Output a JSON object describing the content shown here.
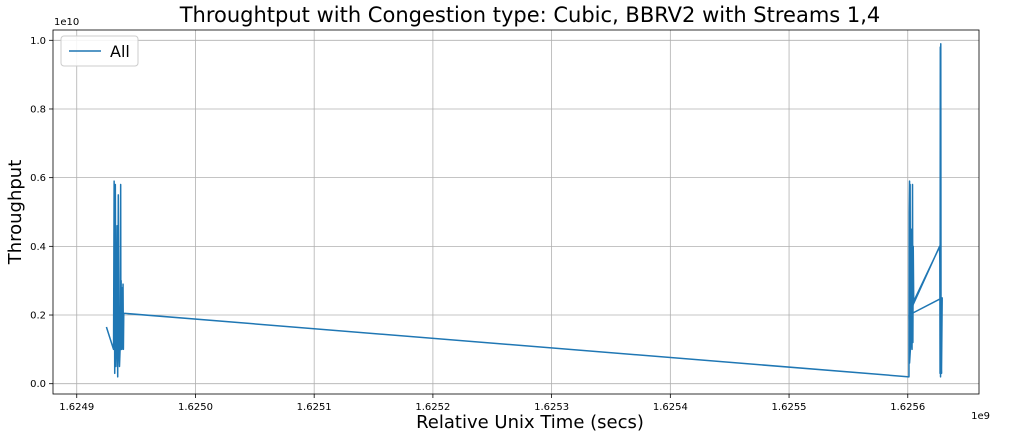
{
  "chart_data": {
    "type": "line",
    "title": "Throughtput with Congestion type: Cubic, BBRV2 with Streams 1,4",
    "xlabel": "Relative Unix Time (secs)",
    "ylabel": "Throughput",
    "x_offset_label": "1e9",
    "y_offset_label": "1e10",
    "xlim": [
      1.62488,
      1.62566
    ],
    "ylim": [
      -0.03,
      1.03
    ],
    "x_ticks": [
      1.6249,
      1.625,
      1.6251,
      1.6252,
      1.6253,
      1.6254,
      1.6255,
      1.6256
    ],
    "x_tick_labels": [
      "1.6249",
      "1.6250",
      "1.6251",
      "1.6252",
      "1.6253",
      "1.6254",
      "1.6255",
      "1.6256"
    ],
    "y_ticks": [
      0.0,
      0.2,
      0.4,
      0.6,
      0.8,
      1.0
    ],
    "y_tick_labels": [
      "0.0",
      "0.2",
      "0.4",
      "0.6",
      "0.8",
      "1.0"
    ],
    "grid": true,
    "legend_position": "top-left",
    "color": "#1f77b4",
    "series": [
      {
        "name": "All",
        "x": [
          1.624925,
          1.624931,
          1.6249315,
          1.624932,
          1.6249325,
          1.624933,
          1.6249335,
          1.624934,
          1.6249345,
          1.624935,
          1.6249355,
          1.624936,
          1.6249365,
          1.624937,
          1.6249372,
          1.6249374,
          1.6249376,
          1.6249378,
          1.624938,
          1.6249385,
          1.624939,
          1.6249393,
          1.6249396,
          1.625601,
          1.6256012,
          1.6256015,
          1.6256018,
          1.625602,
          1.6256023,
          1.6256026,
          1.625603,
          1.6256033,
          1.6256036,
          1.625604,
          1.6256043,
          1.6256046,
          1.625605,
          1.625627,
          1.6256272,
          1.6256274,
          1.6256276,
          1.6256278,
          1.625628,
          1.6256282,
          1.6256284,
          1.625629,
          1.625601,
          1.6256015,
          1.6256045,
          1.6256268,
          1.6256275,
          1.6256285
        ],
        "y": [
          0.165,
          0.1,
          0.59,
          0.03,
          0.58,
          0.05,
          0.12,
          0.46,
          0.02,
          0.55,
          0.1,
          0.05,
          0.1,
          0.58,
          0.1,
          0.3,
          0.1,
          0.28,
          0.1,
          0.2,
          0.29,
          0.1,
          0.205,
          0.02,
          0.5,
          0.59,
          0.1,
          0.58,
          0.15,
          0.2,
          0.12,
          0.45,
          0.1,
          0.58,
          0.12,
          0.4,
          0.24,
          0.4,
          0.03,
          0.98,
          0.02,
          0.99,
          0.25,
          0.2,
          0.03,
          0.25,
          0.2,
          0.06,
          0.23,
          0.4,
          0.24,
          0.03
        ]
      }
    ]
  }
}
